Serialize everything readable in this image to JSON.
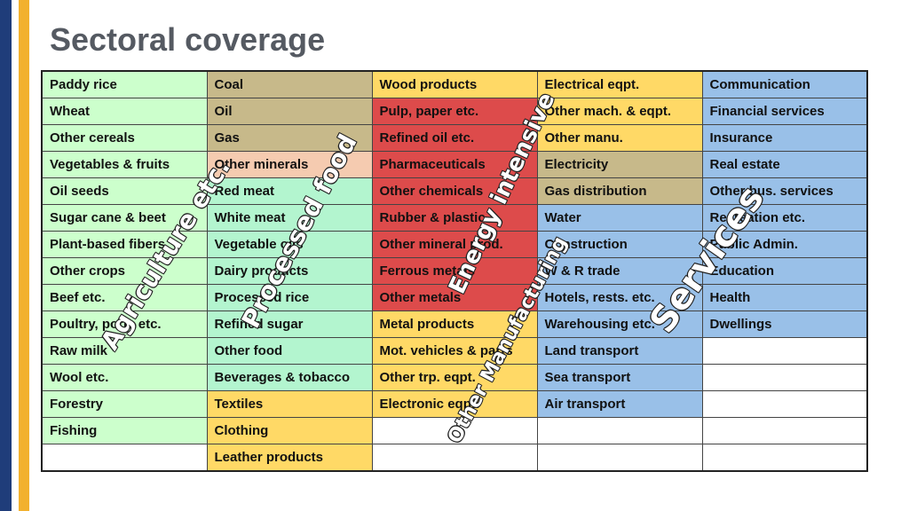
{
  "title": "Sectoral coverage",
  "colors": {
    "agriculture": "#ccffcc",
    "primary": "#c7b98a",
    "other_minerals": "#f5cbb0",
    "processed_food": "#b3f5cf",
    "manufacturing": "#ffd966",
    "energy_intensive": "#dd4b4b",
    "services": "#99c0e8"
  },
  "rows": [
    [
      "Paddy rice",
      "Coal",
      "Wood products",
      "Electrical eqpt.",
      "Communication"
    ],
    [
      "Wheat",
      "Oil",
      "Pulp, paper etc.",
      "Other mach. & eqpt.",
      "Financial services"
    ],
    [
      "Other cereals",
      "Gas",
      "Refined oil etc.",
      "Other manu.",
      "Insurance"
    ],
    [
      "Vegetables & fruits",
      "Other minerals",
      "Pharmaceuticals",
      "Electricity",
      "Real estate"
    ],
    [
      "Oil seeds",
      "Red meat",
      "Other chemicals",
      "Gas distribution",
      "Other bus. services"
    ],
    [
      "Sugar cane & beet",
      "White meat",
      "Rubber & plastic",
      "Water",
      "Recreation etc."
    ],
    [
      "Plant-based fibers",
      "Vegetable oils",
      "Other mineral prod.",
      "Construction",
      "Public Admin."
    ],
    [
      "Other crops",
      "Dairy products",
      "Ferrous metals",
      "W & R trade",
      "Education"
    ],
    [
      "Beef etc.",
      "Processed rice",
      "Other metals",
      "Hotels, rests. etc.",
      "Health"
    ],
    [
      "Poultry, pork, etc.",
      "Refined sugar",
      "Metal products",
      "Warehousing etc.",
      "Dwellings"
    ],
    [
      "Raw milk",
      "Other food",
      "Mot. vehicles & parts",
      "Land transport",
      ""
    ],
    [
      "Wool etc.",
      "Beverages & tobacco",
      "Other trp. eqpt.",
      "Sea transport",
      ""
    ],
    [
      "Forestry",
      "Textiles",
      "Electronic eqpt.",
      "Air transport",
      ""
    ],
    [
      "Fishing",
      "Clothing",
      "",
      "",
      ""
    ],
    [
      "",
      "Leather products",
      "",
      "",
      ""
    ]
  ],
  "overlays": {
    "agriculture": "Agriculture etc.",
    "processed_food": "Processed food",
    "energy_intensive": "Energy intensive",
    "other_manufacturing": "Other Manufacturing",
    "services": "Services"
  }
}
